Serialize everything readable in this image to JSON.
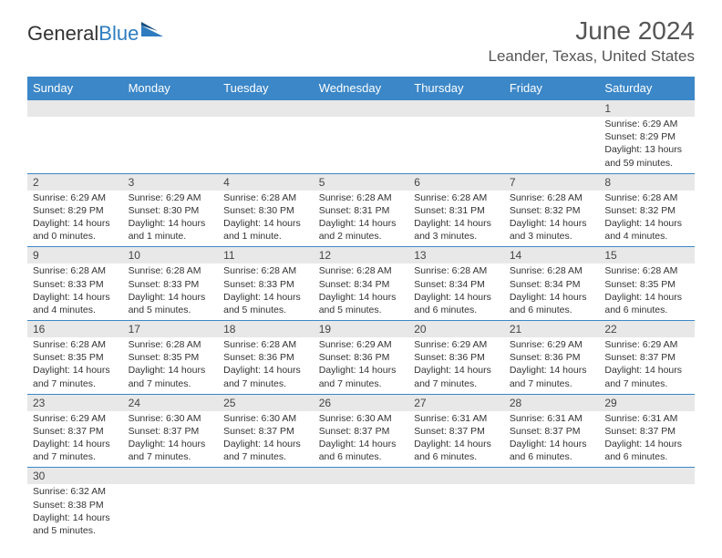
{
  "brand": {
    "part1": "General",
    "part2": "Blue"
  },
  "title": "June 2024",
  "location": "Leander, Texas, United States",
  "colors": {
    "header_bg": "#3b87c8",
    "header_text": "#ffffff",
    "daynum_bg": "#e8e8e8",
    "border": "#3b87c8",
    "text": "#333333",
    "title_text": "#555555"
  },
  "weekdays": [
    "Sunday",
    "Monday",
    "Tuesday",
    "Wednesday",
    "Thursday",
    "Friday",
    "Saturday"
  ],
  "weeks": [
    [
      null,
      null,
      null,
      null,
      null,
      null,
      {
        "n": "1",
        "sr": "6:29 AM",
        "ss": "8:29 PM",
        "dl": "13 hours and 59 minutes."
      }
    ],
    [
      {
        "n": "2",
        "sr": "6:29 AM",
        "ss": "8:29 PM",
        "dl": "14 hours and 0 minutes."
      },
      {
        "n": "3",
        "sr": "6:29 AM",
        "ss": "8:30 PM",
        "dl": "14 hours and 1 minute."
      },
      {
        "n": "4",
        "sr": "6:28 AM",
        "ss": "8:30 PM",
        "dl": "14 hours and 1 minute."
      },
      {
        "n": "5",
        "sr": "6:28 AM",
        "ss": "8:31 PM",
        "dl": "14 hours and 2 minutes."
      },
      {
        "n": "6",
        "sr": "6:28 AM",
        "ss": "8:31 PM",
        "dl": "14 hours and 3 minutes."
      },
      {
        "n": "7",
        "sr": "6:28 AM",
        "ss": "8:32 PM",
        "dl": "14 hours and 3 minutes."
      },
      {
        "n": "8",
        "sr": "6:28 AM",
        "ss": "8:32 PM",
        "dl": "14 hours and 4 minutes."
      }
    ],
    [
      {
        "n": "9",
        "sr": "6:28 AM",
        "ss": "8:33 PM",
        "dl": "14 hours and 4 minutes."
      },
      {
        "n": "10",
        "sr": "6:28 AM",
        "ss": "8:33 PM",
        "dl": "14 hours and 5 minutes."
      },
      {
        "n": "11",
        "sr": "6:28 AM",
        "ss": "8:33 PM",
        "dl": "14 hours and 5 minutes."
      },
      {
        "n": "12",
        "sr": "6:28 AM",
        "ss": "8:34 PM",
        "dl": "14 hours and 5 minutes."
      },
      {
        "n": "13",
        "sr": "6:28 AM",
        "ss": "8:34 PM",
        "dl": "14 hours and 6 minutes."
      },
      {
        "n": "14",
        "sr": "6:28 AM",
        "ss": "8:34 PM",
        "dl": "14 hours and 6 minutes."
      },
      {
        "n": "15",
        "sr": "6:28 AM",
        "ss": "8:35 PM",
        "dl": "14 hours and 6 minutes."
      }
    ],
    [
      {
        "n": "16",
        "sr": "6:28 AM",
        "ss": "8:35 PM",
        "dl": "14 hours and 7 minutes."
      },
      {
        "n": "17",
        "sr": "6:28 AM",
        "ss": "8:35 PM",
        "dl": "14 hours and 7 minutes."
      },
      {
        "n": "18",
        "sr": "6:28 AM",
        "ss": "8:36 PM",
        "dl": "14 hours and 7 minutes."
      },
      {
        "n": "19",
        "sr": "6:29 AM",
        "ss": "8:36 PM",
        "dl": "14 hours and 7 minutes."
      },
      {
        "n": "20",
        "sr": "6:29 AM",
        "ss": "8:36 PM",
        "dl": "14 hours and 7 minutes."
      },
      {
        "n": "21",
        "sr": "6:29 AM",
        "ss": "8:36 PM",
        "dl": "14 hours and 7 minutes."
      },
      {
        "n": "22",
        "sr": "6:29 AM",
        "ss": "8:37 PM",
        "dl": "14 hours and 7 minutes."
      }
    ],
    [
      {
        "n": "23",
        "sr": "6:29 AM",
        "ss": "8:37 PM",
        "dl": "14 hours and 7 minutes."
      },
      {
        "n": "24",
        "sr": "6:30 AM",
        "ss": "8:37 PM",
        "dl": "14 hours and 7 minutes."
      },
      {
        "n": "25",
        "sr": "6:30 AM",
        "ss": "8:37 PM",
        "dl": "14 hours and 7 minutes."
      },
      {
        "n": "26",
        "sr": "6:30 AM",
        "ss": "8:37 PM",
        "dl": "14 hours and 6 minutes."
      },
      {
        "n": "27",
        "sr": "6:31 AM",
        "ss": "8:37 PM",
        "dl": "14 hours and 6 minutes."
      },
      {
        "n": "28",
        "sr": "6:31 AM",
        "ss": "8:37 PM",
        "dl": "14 hours and 6 minutes."
      },
      {
        "n": "29",
        "sr": "6:31 AM",
        "ss": "8:37 PM",
        "dl": "14 hours and 6 minutes."
      }
    ],
    [
      {
        "n": "30",
        "sr": "6:32 AM",
        "ss": "8:38 PM",
        "dl": "14 hours and 5 minutes."
      },
      null,
      null,
      null,
      null,
      null,
      null
    ]
  ],
  "labels": {
    "sunrise": "Sunrise: ",
    "sunset": "Sunset: ",
    "daylight": "Daylight: "
  }
}
